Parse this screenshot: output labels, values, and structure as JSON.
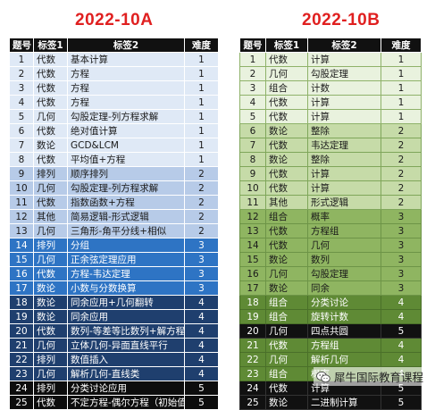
{
  "left": {
    "title": "2022-10A",
    "headers": [
      "题号",
      "标签1",
      "标签2",
      "难度"
    ],
    "rows": [
      {
        "no": "1",
        "tag1": "代数",
        "tag2": "基本计算",
        "diff": "1"
      },
      {
        "no": "2",
        "tag1": "代数",
        "tag2": "方程",
        "diff": "1"
      },
      {
        "no": "3",
        "tag1": "代数",
        "tag2": "方程",
        "diff": "1"
      },
      {
        "no": "4",
        "tag1": "代数",
        "tag2": "方程",
        "diff": "1"
      },
      {
        "no": "5",
        "tag1": "几何",
        "tag2": "勾股定理-列方程求解",
        "diff": "1"
      },
      {
        "no": "6",
        "tag1": "代数",
        "tag2": "绝对值计算",
        "diff": "1"
      },
      {
        "no": "7",
        "tag1": "数论",
        "tag2": "GCD&LCM",
        "diff": "1"
      },
      {
        "no": "8",
        "tag1": "代数",
        "tag2": "平均值+方程",
        "diff": "1"
      },
      {
        "no": "9",
        "tag1": "排列",
        "tag2": "顺序排列",
        "diff": "2"
      },
      {
        "no": "10",
        "tag1": "几何",
        "tag2": "勾股定理-列方程求解",
        "diff": "2"
      },
      {
        "no": "11",
        "tag1": "代数",
        "tag2": "指数函数+方程",
        "diff": "2"
      },
      {
        "no": "12",
        "tag1": "其他",
        "tag2": "简易逻辑-形式逻辑",
        "diff": "2"
      },
      {
        "no": "13",
        "tag1": "几何",
        "tag2": "三角形-角平分线+相似",
        "diff": "2"
      },
      {
        "no": "14",
        "tag1": "排列",
        "tag2": "分组",
        "diff": "3"
      },
      {
        "no": "15",
        "tag1": "几何",
        "tag2": "正余弦定理应用",
        "diff": "3"
      },
      {
        "no": "16",
        "tag1": "代数",
        "tag2": "方程-韦达定理",
        "diff": "3"
      },
      {
        "no": "17",
        "tag1": "数论",
        "tag2": "小数与分数换算",
        "diff": "3"
      },
      {
        "no": "18",
        "tag1": "数论",
        "tag2": "同余应用+几何翻转",
        "diff": "4"
      },
      {
        "no": "19",
        "tag1": "数论",
        "tag2": "同余应用",
        "diff": "4"
      },
      {
        "no": "20",
        "tag1": "代数",
        "tag2": "数列-等差等比数列+解方程组",
        "diff": "4"
      },
      {
        "no": "21",
        "tag1": "几何",
        "tag2": "立体几何-异面直线平行",
        "diff": "4"
      },
      {
        "no": "22",
        "tag1": "排列",
        "tag2": "数值插入",
        "diff": "4"
      },
      {
        "no": "23",
        "tag1": "几何",
        "tag2": "解析几何-直线类",
        "diff": "4"
      },
      {
        "no": "24",
        "tag1": "排列",
        "tag2": "分类讨论应用",
        "diff": "5"
      },
      {
        "no": "25",
        "tag1": "代数",
        "tag2": "不定方程-偶尔方程（初始值）",
        "diff": "5"
      }
    ]
  },
  "right": {
    "title": "2022-10B",
    "headers": [
      "题号",
      "标签1",
      "标签2",
      "难度"
    ],
    "rows": [
      {
        "no": "1",
        "tag1": "代数",
        "tag2": "计算",
        "diff": "1"
      },
      {
        "no": "2",
        "tag1": "几何",
        "tag2": "勾股定理",
        "diff": "1"
      },
      {
        "no": "3",
        "tag1": "组合",
        "tag2": "计数",
        "diff": "1"
      },
      {
        "no": "4",
        "tag1": "代数",
        "tag2": "计算",
        "diff": "1"
      },
      {
        "no": "5",
        "tag1": "代数",
        "tag2": "计算",
        "diff": "1"
      },
      {
        "no": "6",
        "tag1": "数论",
        "tag2": "整除",
        "diff": "2"
      },
      {
        "no": "7",
        "tag1": "代数",
        "tag2": "韦达定理",
        "diff": "2"
      },
      {
        "no": "8",
        "tag1": "数论",
        "tag2": "整除",
        "diff": "2"
      },
      {
        "no": "9",
        "tag1": "代数",
        "tag2": "计算",
        "diff": "2"
      },
      {
        "no": "10",
        "tag1": "代数",
        "tag2": "计算",
        "diff": "2"
      },
      {
        "no": "11",
        "tag1": "其他",
        "tag2": "形式逻辑",
        "diff": "2"
      },
      {
        "no": "12",
        "tag1": "组合",
        "tag2": "概率",
        "diff": "3"
      },
      {
        "no": "13",
        "tag1": "代数",
        "tag2": "方程组",
        "diff": "3"
      },
      {
        "no": "14",
        "tag1": "代数",
        "tag2": "几何",
        "diff": "3"
      },
      {
        "no": "15",
        "tag1": "数论",
        "tag2": "数列",
        "diff": "3"
      },
      {
        "no": "16",
        "tag1": "几何",
        "tag2": "勾股定理",
        "diff": "3"
      },
      {
        "no": "17",
        "tag1": "数论",
        "tag2": "同余",
        "diff": "3"
      },
      {
        "no": "18",
        "tag1": "组合",
        "tag2": "分类讨论",
        "diff": "4"
      },
      {
        "no": "19",
        "tag1": "组合",
        "tag2": "旋转计数",
        "diff": "4"
      },
      {
        "no": "20",
        "tag1": "几何",
        "tag2": "四点共圆",
        "diff": "5"
      },
      {
        "no": "21",
        "tag1": "代数",
        "tag2": "方程组",
        "diff": "4"
      },
      {
        "no": "22",
        "tag1": "几何",
        "tag2": "解析几何",
        "diff": "4"
      },
      {
        "no": "23",
        "tag1": "组合",
        "tag2": "概率",
        "diff": "4"
      },
      {
        "no": "24",
        "tag1": "代数",
        "tag2": "计算",
        "diff": "5"
      },
      {
        "no": "25",
        "tag1": "数论",
        "tag2": "二进制计算",
        "diff": "5"
      }
    ]
  },
  "watermark": {
    "text": "犀牛国际教育课程",
    "icon": "wechat-icon"
  }
}
